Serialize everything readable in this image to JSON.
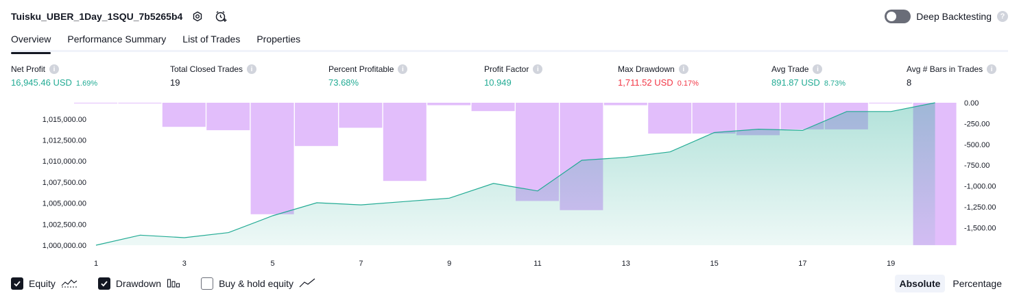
{
  "header": {
    "strategy_title": "Tuisku_UBER_1Day_1SQU_7b5265b4",
    "deep_backtesting_label": "Deep Backtesting",
    "deep_backtesting_enabled": false
  },
  "tabs": [
    {
      "label": "Overview",
      "active": true
    },
    {
      "label": "Performance Summary",
      "active": false
    },
    {
      "label": "List of Trades",
      "active": false
    },
    {
      "label": "Properties",
      "active": false
    }
  ],
  "stats": {
    "net_profit": {
      "label": "Net Profit",
      "value": "16,945.46 USD",
      "pct": "1.69%"
    },
    "total_closed_trades": {
      "label": "Total Closed Trades",
      "value": "19"
    },
    "percent_profitable": {
      "label": "Percent Profitable",
      "value": "73.68%"
    },
    "profit_factor": {
      "label": "Profit Factor",
      "value": "10.949"
    },
    "max_drawdown": {
      "label": "Max Drawdown",
      "value": "1,711.52 USD",
      "pct": "0.17%"
    },
    "avg_trade": {
      "label": "Avg Trade",
      "value": "891.87 USD",
      "pct": "8.73%"
    },
    "avg_bars": {
      "label": "Avg # Bars in Trades",
      "value": "8"
    }
  },
  "colors": {
    "positive": "#22ab94",
    "negative": "#f23645",
    "equity_line": "#22ab94",
    "equity_fill": "#22ab94",
    "drawdown_bar": "#ce93f8"
  },
  "chart_data": {
    "type": "area",
    "x": [
      1,
      2,
      3,
      4,
      5,
      6,
      7,
      8,
      9,
      10,
      11,
      12,
      13,
      14,
      15,
      16,
      17,
      18,
      19,
      20
    ],
    "x_tick_labels": [
      "1",
      "3",
      "5",
      "7",
      "9",
      "11",
      "13",
      "15",
      "17",
      "19"
    ],
    "series": [
      {
        "name": "Equity",
        "axis": "left",
        "type": "area",
        "values": [
          1000000,
          1001200,
          1000900,
          1001500,
          1003500,
          1005050,
          1004800,
          1005200,
          1005600,
          1007350,
          1006450,
          1010100,
          1010450,
          1011100,
          1013400,
          1013800,
          1013650,
          1015900,
          1015900,
          1016945
        ]
      },
      {
        "name": "Drawdown",
        "axis": "right",
        "type": "bar",
        "values": [
          0,
          0,
          -290,
          -330,
          -1340,
          -520,
          -300,
          -940,
          -30,
          -100,
          -1180,
          -1290,
          -30,
          -370,
          -370,
          -390,
          -320,
          -320,
          0,
          -1711
        ]
      }
    ],
    "y_left": {
      "min": 1000000,
      "max": 1016945,
      "ticks": [
        "1,015,000.00",
        "1,012,500.00",
        "1,010,000.00",
        "1,007,500.00",
        "1,005,000.00",
        "1,002,500.00",
        "1,000,000.00"
      ],
      "tick_values": [
        1015000,
        1012500,
        1010000,
        1007500,
        1005000,
        1002500,
        1000000
      ]
    },
    "y_right": {
      "min": -1711.52,
      "max": 0,
      "ticks": [
        "0.00",
        "-250.00",
        "-500.00",
        "-750.00",
        "-1,000.00",
        "-1,250.00",
        "-1,500.00"
      ],
      "tick_values": [
        0,
        -250,
        -500,
        -750,
        -1000,
        -1250,
        -1500
      ]
    },
    "grid": false
  },
  "legend": [
    {
      "label": "Equity",
      "checked": true,
      "icon": "equity-icon"
    },
    {
      "label": "Drawdown",
      "checked": true,
      "icon": "drawdown-bars-icon"
    },
    {
      "label": "Buy & hold equity",
      "checked": false,
      "icon": "line-trend-icon"
    }
  ],
  "modes": [
    {
      "label": "Absolute",
      "active": true
    },
    {
      "label": "Percentage",
      "active": false
    }
  ]
}
